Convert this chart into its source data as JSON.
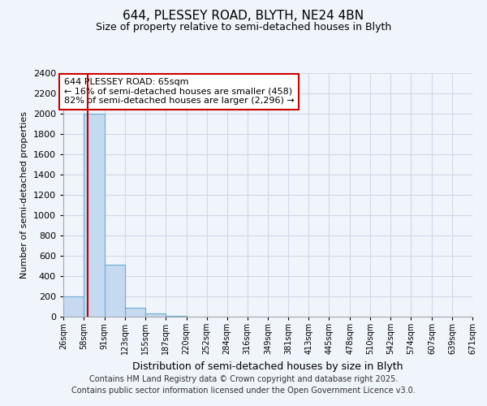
{
  "title_line1": "644, PLESSEY ROAD, BLYTH, NE24 4BN",
  "title_line2": "Size of property relative to semi-detached houses in Blyth",
  "xlabel": "Distribution of semi-detached houses by size in Blyth",
  "ylabel": "Number of semi-detached properties",
  "footer_line1": "Contains HM Land Registry data © Crown copyright and database right 2025.",
  "footer_line2": "Contains public sector information licensed under the Open Government Licence v3.0.",
  "annotation_line1": "644 PLESSEY ROAD: 65sqm",
  "annotation_line2": "← 16% of semi-detached houses are smaller (458)",
  "annotation_line3": "82% of semi-detached houses are larger (2,296) →",
  "property_size": 65,
  "bar_edges": [
    26,
    58,
    91,
    123,
    155,
    187,
    220,
    252,
    284,
    316,
    349,
    381,
    413,
    445,
    478,
    510,
    542,
    574,
    607,
    639,
    671
  ],
  "bar_values": [
    200,
    2000,
    510,
    85,
    30,
    5,
    0,
    0,
    0,
    0,
    0,
    0,
    0,
    0,
    0,
    0,
    0,
    0,
    0,
    0
  ],
  "bar_color": "#c5d9f0",
  "bar_edge_color": "#6baed6",
  "red_line_color": "#cc0000",
  "background_color": "#f0f4fb",
  "plot_bg_color": "#f0f4fb",
  "ylim": [
    0,
    2400
  ],
  "yticks": [
    0,
    200,
    400,
    600,
    800,
    1000,
    1200,
    1400,
    1600,
    1800,
    2000,
    2200,
    2400
  ],
  "annotation_box_color": "#cc0000",
  "grid_color": "#d0d8e8",
  "title_fontsize": 11,
  "subtitle_fontsize": 9,
  "footer_fontsize": 7,
  "xlabel_fontsize": 9,
  "ylabel_fontsize": 8
}
